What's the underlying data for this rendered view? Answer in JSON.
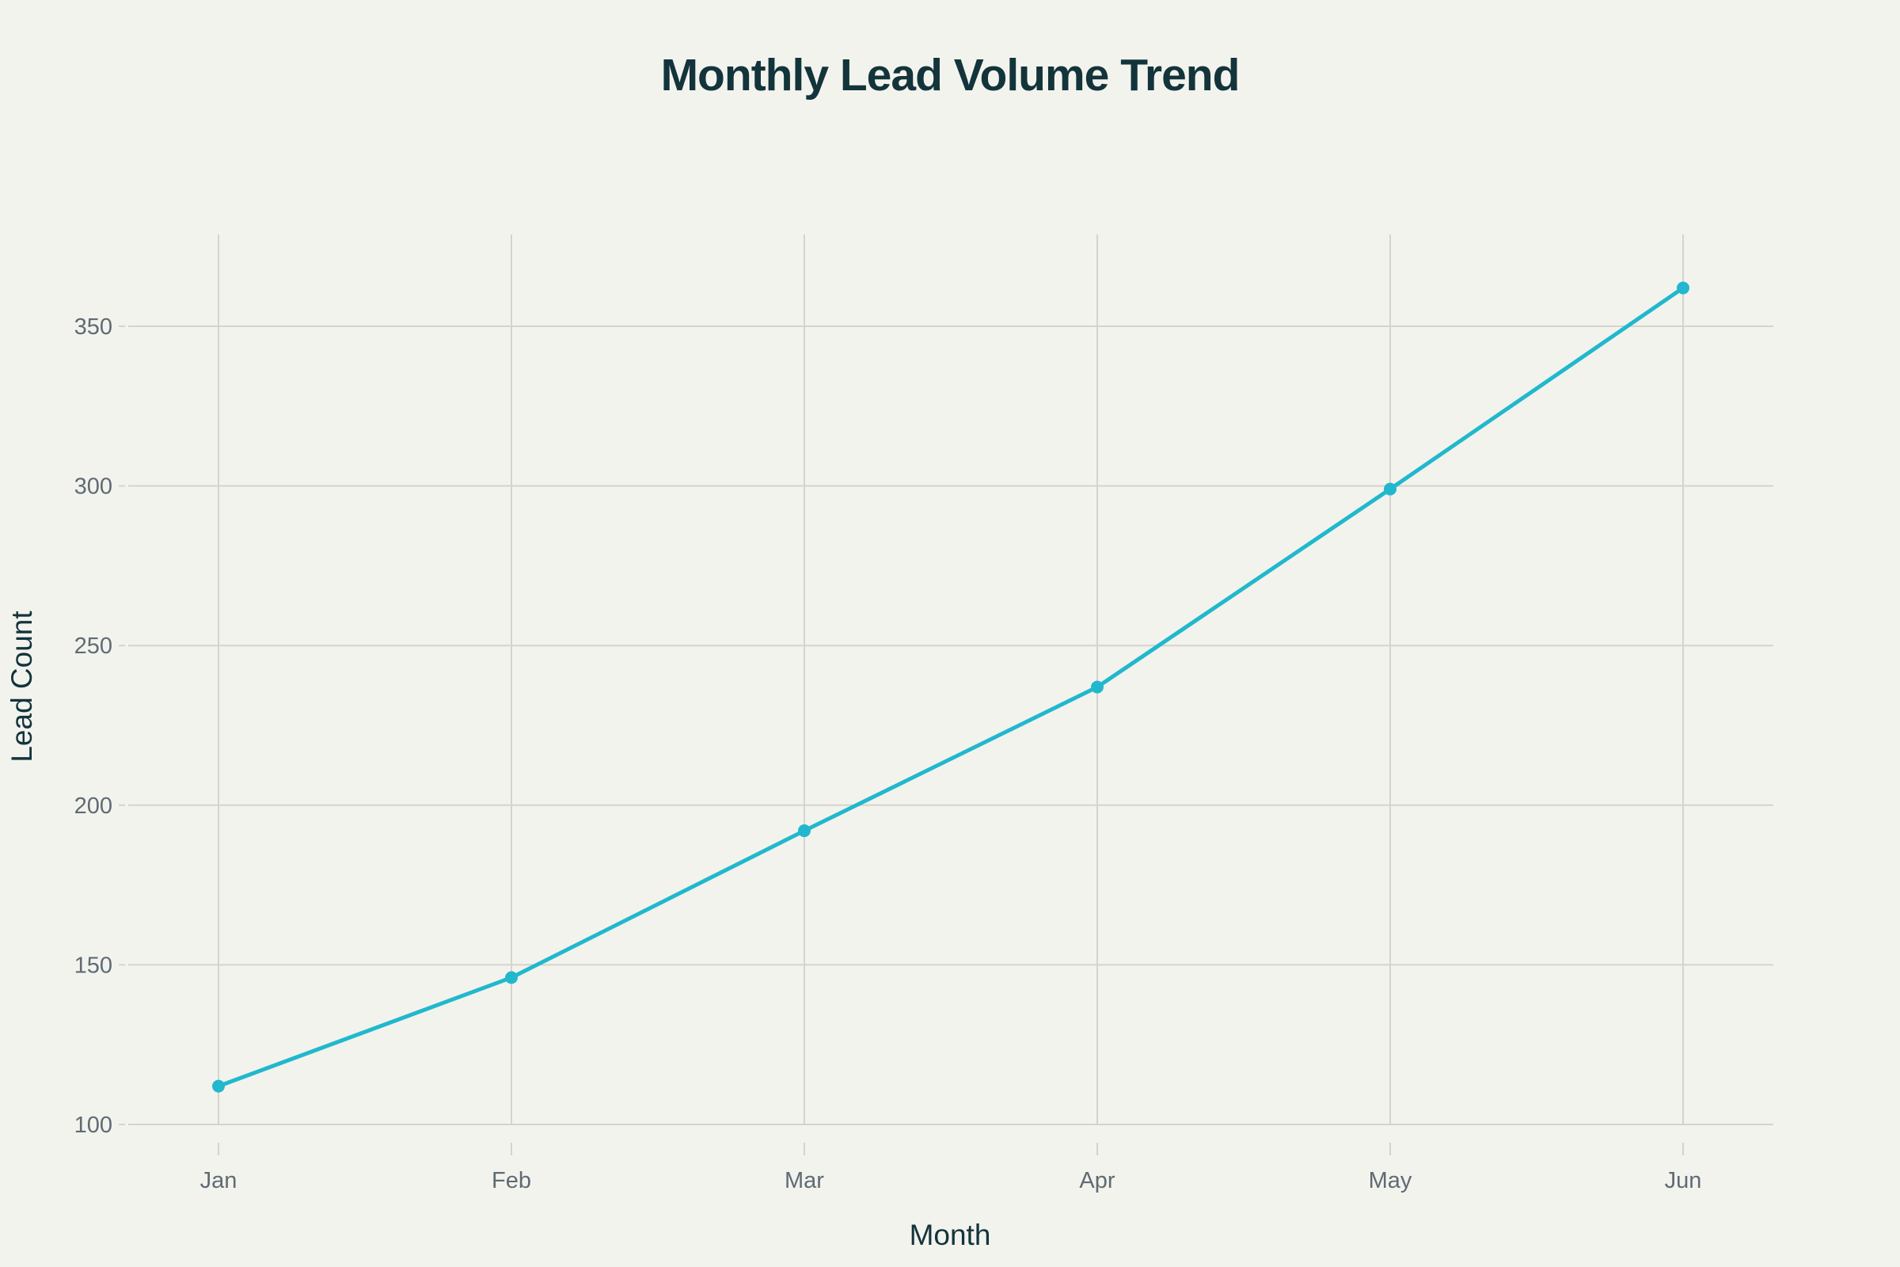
{
  "chart_data": {
    "type": "line",
    "title": "Monthly Lead Volume Trend",
    "xlabel": "Month",
    "ylabel": "Lead Count",
    "categories": [
      "Jan",
      "Feb",
      "Mar",
      "Apr",
      "May",
      "Jun"
    ],
    "series": [
      {
        "name": "Lead Count",
        "values": [
          112,
          146,
          192,
          237,
          299,
          362
        ],
        "color": "#21b8cd"
      }
    ],
    "yticks": [
      100,
      150,
      200,
      250,
      300,
      350
    ],
    "ylim": [
      100,
      378
    ],
    "grid": true,
    "legend": "none"
  },
  "colors": {
    "background": "#f3f3ee",
    "line": "#21b8cd",
    "grid": "#d6d3ce",
    "title": "#13343b",
    "tick": "#5f6b73"
  }
}
